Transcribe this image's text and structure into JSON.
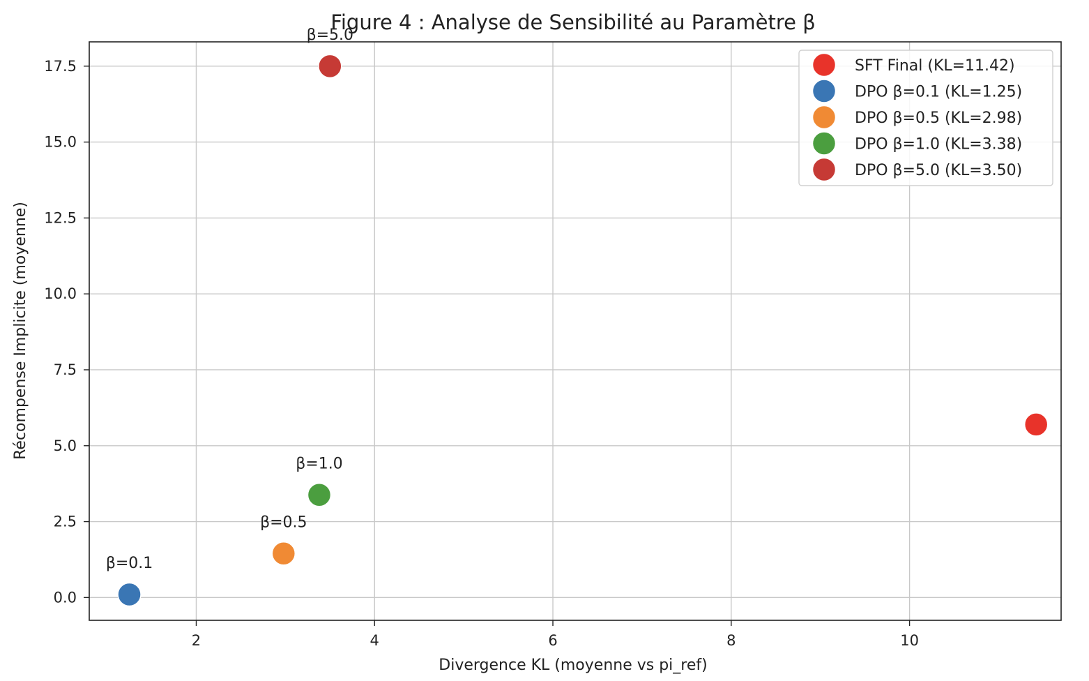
{
  "chart_data": {
    "type": "scatter",
    "title": "Figure 4 : Analyse de Sensibilité au Paramètre β",
    "xlabel": "Divergence KL (moyenne vs pi_ref)",
    "ylabel": "Récompense Implicite (moyenne)",
    "xlim": [
      0.8,
      11.7
    ],
    "ylim": [
      -0.75,
      18.3
    ],
    "x_ticks": [
      {
        "value": 2,
        "label": "2"
      },
      {
        "value": 4,
        "label": "4"
      },
      {
        "value": 6,
        "label": "6"
      },
      {
        "value": 8,
        "label": "8"
      },
      {
        "value": 10,
        "label": "10"
      }
    ],
    "y_ticks": [
      {
        "value": 0,
        "label": "0.0"
      },
      {
        "value": 2.5,
        "label": "2.5"
      },
      {
        "value": 5,
        "label": "5.0"
      },
      {
        "value": 7.5,
        "label": "7.5"
      },
      {
        "value": 10,
        "label": "10.0"
      },
      {
        "value": 12.5,
        "label": "12.5"
      },
      {
        "value": 15,
        "label": "15.0"
      },
      {
        "value": 17.5,
        "label": "17.5"
      }
    ],
    "grid": true,
    "legend_position": "top-right",
    "series": [
      {
        "name": "SFT Final (KL=11.42)",
        "color": "#e8332a",
        "x": 11.42,
        "y": 5.7,
        "label": ""
      },
      {
        "name": "DPO β=0.1 (KL=1.25)",
        "color": "#3a76b4",
        "x": 1.25,
        "y": 0.1,
        "label": "β=0.1"
      },
      {
        "name": "DPO β=0.5 (KL=2.98)",
        "color": "#f08a34",
        "x": 2.98,
        "y": 1.45,
        "label": "β=0.5"
      },
      {
        "name": "DPO β=1.0 (KL=3.38)",
        "color": "#4b9e3f",
        "x": 3.38,
        "y": 3.38,
        "label": "β=1.0"
      },
      {
        "name": "DPO β=5.0 (KL=3.50)",
        "color": "#c63a35",
        "x": 3.5,
        "y": 17.5,
        "label": "β=5.0"
      }
    ]
  }
}
